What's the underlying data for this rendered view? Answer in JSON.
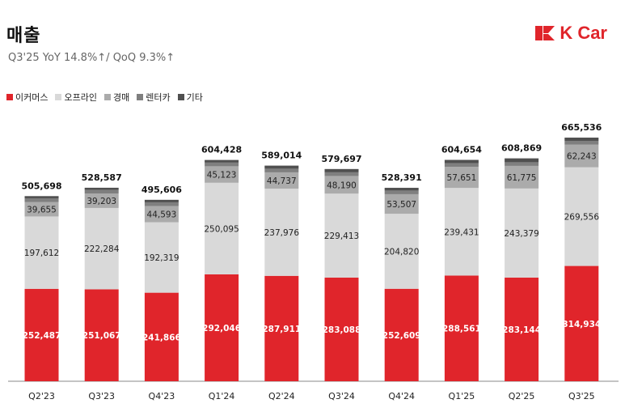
{
  "header": {
    "title": "매출",
    "subtitle": "Q3'25 YoY 14.8%↑/ QoQ 9.3%↑",
    "logo_text": "K Car",
    "logo_color": "#e0252b"
  },
  "colors": {
    "ecommerce": "#e0252b",
    "offline": "#d9d9d9",
    "auction": "#ababab",
    "rentcar": "#7f7f7f",
    "other": "#505050",
    "axis": "#888888"
  },
  "chart_data": {
    "type": "bar",
    "stacked": true,
    "categories": [
      "Q2'23",
      "Q3'23",
      "Q4'23",
      "Q1'24",
      "Q2'24",
      "Q3'24",
      "Q4'24",
      "Q1'25",
      "Q2'25",
      "Q3'25"
    ],
    "series": [
      {
        "name": "이커머스",
        "values": [
          252487,
          251067,
          241866,
          292046,
          287911,
          283088,
          252609,
          288561,
          283144,
          314934
        ]
      },
      {
        "name": "오프라인",
        "values": [
          197612,
          222284,
          192319,
          250095,
          237976,
          229413,
          204820,
          239431,
          243379,
          269556
        ]
      },
      {
        "name": "경매",
        "values": [
          39655,
          39203,
          44593,
          45123,
          44737,
          48190,
          53507,
          57651,
          61775,
          62243
        ]
      },
      {
        "name": "렌터카",
        "values": [
          10000,
          10000,
          10000,
          10000,
          10000,
          10000,
          10000,
          10000,
          10000,
          10000
        ]
      },
      {
        "name": "기타",
        "values": [
          5944,
          6033,
          6828,
          7164,
          8390,
          9006,
          7455,
          9011,
          10571,
          8803
        ]
      }
    ],
    "totals": [
      505698,
      528587,
      495606,
      604428,
      589014,
      579697,
      528391,
      604654,
      608869,
      665536
    ],
    "total_labels": [
      "505,698",
      "528,587",
      "495,606",
      "604,428",
      "589,014",
      "579,697",
      "528,391",
      "604,654",
      "608,869",
      "665,536"
    ],
    "labels": {
      "ecommerce": [
        "252,487",
        "251,067",
        "241,866",
        "292,046",
        "287,911",
        "283,088",
        "252,609",
        "288,561",
        "283,144",
        "314,934"
      ],
      "offline": [
        "197,612",
        "222,284",
        "192,319",
        "250,095",
        "237,976",
        "229,413",
        "204,820",
        "239,431",
        "243,379",
        "269,556"
      ],
      "auction": [
        "39,655",
        "39,203",
        "44,593",
        "45,123",
        "44,737",
        "48,190",
        "53,507",
        "57,651",
        "61,775",
        "62,243"
      ]
    },
    "ylim": [
      0,
      665536
    ],
    "grid": false,
    "legend_position": "top-left"
  }
}
